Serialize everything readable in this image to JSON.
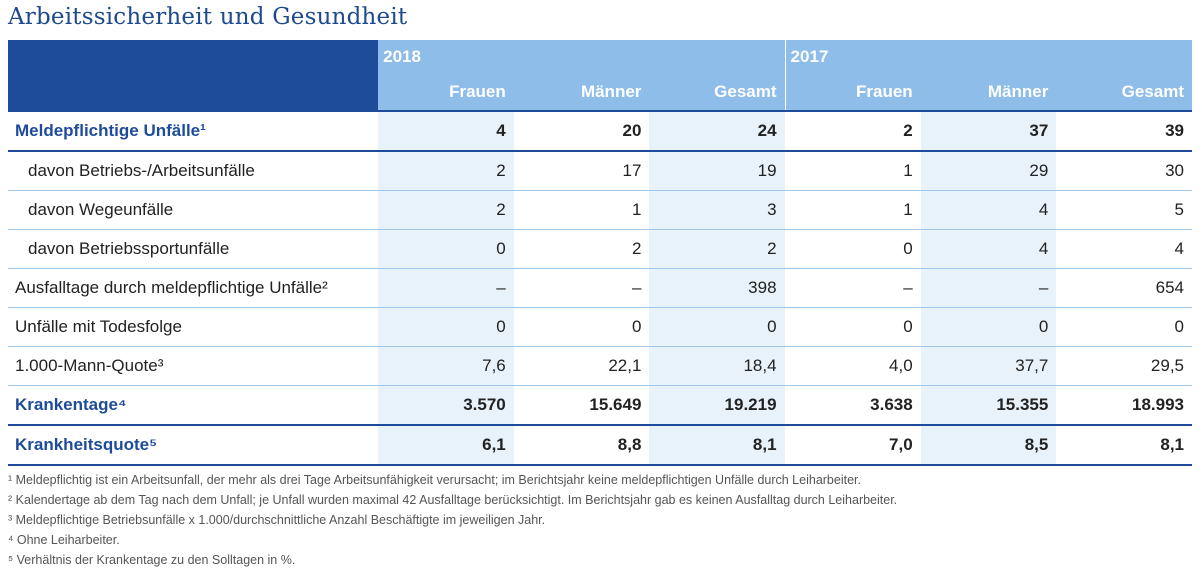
{
  "title": "Arbeitssicherheit und Gesundheit",
  "years": [
    "2018",
    "2017"
  ],
  "columns": [
    "Frauen",
    "Männer",
    "Gesamt",
    "Frauen",
    "Männer",
    "Gesamt"
  ],
  "rows": [
    {
      "label": "Meldepflichtige Unfälle¹",
      "values": [
        "4",
        "20",
        "24",
        "2",
        "37",
        "39"
      ],
      "bold": true,
      "indent": false
    },
    {
      "label": "davon Betriebs-/Arbeitsunfälle",
      "values": [
        "2",
        "17",
        "19",
        "1",
        "29",
        "30"
      ],
      "bold": false,
      "indent": true
    },
    {
      "label": "davon Wegeunfälle",
      "values": [
        "2",
        "1",
        "3",
        "1",
        "4",
        "5"
      ],
      "bold": false,
      "indent": true
    },
    {
      "label": "davon Betriebssportunfälle",
      "values": [
        "0",
        "2",
        "2",
        "0",
        "4",
        "4"
      ],
      "bold": false,
      "indent": true
    },
    {
      "label": "Ausfalltage durch meldepflichtige Unfälle²",
      "values": [
        "–",
        "–",
        "398",
        "–",
        "–",
        "654"
      ],
      "bold": false,
      "indent": false
    },
    {
      "label": "Unfälle mit Todesfolge",
      "values": [
        "0",
        "0",
        "0",
        "0",
        "0",
        "0"
      ],
      "bold": false,
      "indent": false
    },
    {
      "label": "1.000-Mann-Quote³",
      "values": [
        "7,6",
        "22,1",
        "18,4",
        "4,0",
        "37,7",
        "29,5"
      ],
      "bold": false,
      "indent": false
    },
    {
      "label": "Krankentage⁴",
      "values": [
        "3.570",
        "15.649",
        "19.219",
        "3.638",
        "15.355",
        "18.993"
      ],
      "bold": true,
      "indent": false
    },
    {
      "label": "Krankheitsquote⁵",
      "values": [
        "6,1",
        "8,8",
        "8,1",
        "7,0",
        "8,5",
        "8,1"
      ],
      "bold": true,
      "indent": false
    }
  ],
  "footnotes": [
    "¹ Meldepflichtig ist ein Arbeitsunfall, der mehr als drei Tage Arbeitsunfähigkeit verursacht; im Berichtsjahr keine meldepflichtigen Unfälle durch Leiharbeiter.",
    "² Kalendertage ab dem Tag nach dem Unfall; je Unfall wurden maximal 42 Ausfalltage berücksichtigt. Im Berichtsjahr gab es keinen Ausfalltag durch Leiharbeiter.",
    "³ Meldepflichtige Betriebsunfälle x 1.000/durchschnittliche Anzahl Beschäftigte im jeweiligen Jahr.",
    "⁴ Ohne Leiharbeiter.",
    "⁵ Verhältnis der Krankentage zu den Solltagen in %."
  ]
}
